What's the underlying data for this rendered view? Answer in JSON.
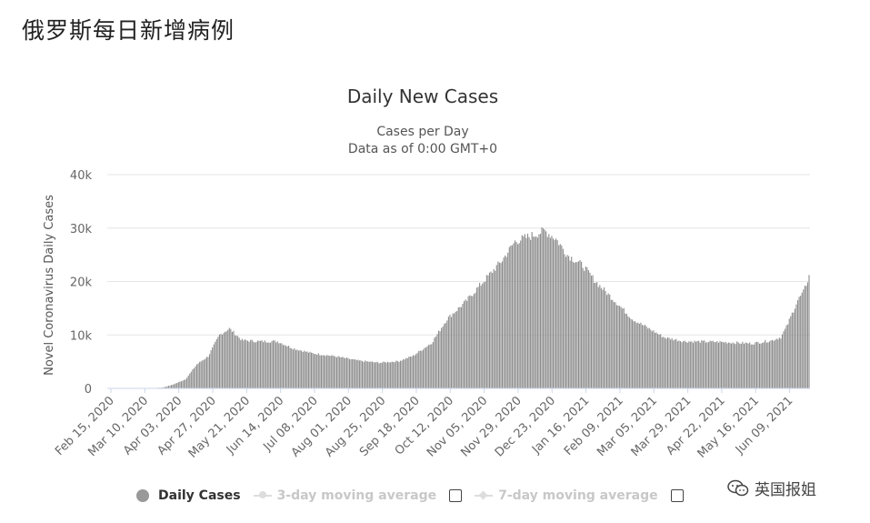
{
  "page": {
    "heading": "俄罗斯每日新增病例"
  },
  "watermark": {
    "text": "英国报姐",
    "icon": "chat-bubbles-icon"
  },
  "legend": {
    "items": [
      {
        "label": "Daily Cases",
        "active": true
      },
      {
        "label": "3-day moving average",
        "active": false
      },
      {
        "label": "7-day moving average",
        "active": false
      }
    ]
  },
  "colors": {
    "bars": "#8c8c8c",
    "grid": "#e6e6e6",
    "axis_text": "#666666"
  },
  "chart_data": {
    "type": "bar",
    "title": "Daily New Cases",
    "subtitle_line1": "Cases per Day",
    "subtitle_line2": "Data as of 0:00 GMT+0",
    "ylabel": "Novel Coronavirus Daily Cases",
    "ylim": [
      0,
      40000
    ],
    "yticks": [
      0,
      10000,
      20000,
      30000,
      40000
    ],
    "ytick_labels": [
      "0",
      "10k",
      "20k",
      "30k",
      "40k"
    ],
    "x_start": "2020-02-15",
    "x_end": "2021-06-25",
    "xtick_labels": [
      "Feb 15, 2020",
      "Mar 10, 2020",
      "Apr 03, 2020",
      "Apr 27, 2020",
      "May 21, 2020",
      "Jun 14, 2020",
      "Jul 08, 2020",
      "Aug 01, 2020",
      "Aug 25, 2020",
      "Sep 18, 2020",
      "Oct 12, 2020",
      "Nov 05, 2020",
      "Nov 29, 2020",
      "Dec 23, 2020",
      "Jan 16, 2021",
      "Feb 09, 2021",
      "Mar 05, 2021",
      "Mar 29, 2021",
      "Apr 22, 2021",
      "May 16, 2021",
      "Jun 09, 2021"
    ],
    "keyframes": [
      [
        "2020-02-15",
        0
      ],
      [
        "2020-03-15",
        20
      ],
      [
        "2020-03-25",
        150
      ],
      [
        "2020-04-01",
        700
      ],
      [
        "2020-04-10",
        1700
      ],
      [
        "2020-04-18",
        4500
      ],
      [
        "2020-04-26",
        6000
      ],
      [
        "2020-05-04",
        10000
      ],
      [
        "2020-05-11",
        11200
      ],
      [
        "2020-05-20",
        9000
      ],
      [
        "2020-06-01",
        8800
      ],
      [
        "2020-06-14",
        8800
      ],
      [
        "2020-06-25",
        7500
      ],
      [
        "2020-07-08",
        6600
      ],
      [
        "2020-07-25",
        6000
      ],
      [
        "2020-08-10",
        5200
      ],
      [
        "2020-08-25",
        4800
      ],
      [
        "2020-09-08",
        5100
      ],
      [
        "2020-09-18",
        6100
      ],
      [
        "2020-10-01",
        8500
      ],
      [
        "2020-10-12",
        13000
      ],
      [
        "2020-10-25",
        16200
      ],
      [
        "2020-11-05",
        19500
      ],
      [
        "2020-11-20",
        24000
      ],
      [
        "2020-11-29",
        27500
      ],
      [
        "2020-12-10",
        28500
      ],
      [
        "2020-12-20",
        29500
      ],
      [
        "2020-12-28",
        28000
      ],
      [
        "2021-01-05",
        25000
      ],
      [
        "2021-01-16",
        23000
      ],
      [
        "2021-01-25",
        20000
      ],
      [
        "2021-02-09",
        16000
      ],
      [
        "2021-02-20",
        13000
      ],
      [
        "2021-03-05",
        11000
      ],
      [
        "2021-03-15",
        9500
      ],
      [
        "2021-03-29",
        8800
      ],
      [
        "2021-04-22",
        8700
      ],
      [
        "2021-05-16",
        8400
      ],
      [
        "2021-05-30",
        9000
      ],
      [
        "2021-06-05",
        9600
      ],
      [
        "2021-06-09",
        11500
      ],
      [
        "2021-06-13",
        14000
      ],
      [
        "2021-06-17",
        16500
      ],
      [
        "2021-06-21",
        18000
      ],
      [
        "2021-06-25",
        21000
      ]
    ]
  }
}
